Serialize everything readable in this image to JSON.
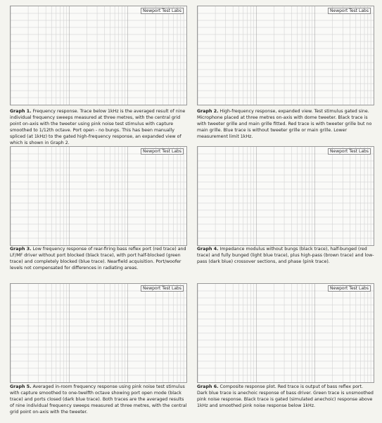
{
  "publisher": "Newport Test Labs",
  "graphs": [
    {
      "label": "Graph 1.",
      "caption": "Frequency response. Trace below 1kHz is the averaged result of nine individual frequency sweeps measured at three metres, with the central grid point on-axis with the tweeter using pink noise test stimulus with capture smoothed to 1/12th octave. Port open - no bungs. This has been manually spliced (at 1kHz) to the gated high-frequency response, an expanded view of which is shown in Graph 2."
    },
    {
      "label": "Graph 2.",
      "caption": "High-frequency response, expanded view. Test stimulus gated sine. Microphone placed at three metres on-axis with dome tweeter. Black trace is with tweeter grille and main grille fitted. Red trace is with tweeter grille but no main grille. Blue trace is without tweeter grille or main grille. Lower measurement limit 1kHz."
    },
    {
      "label": "Graph 3.",
      "caption": "Low frequency response of rear-firing bass reflex port (red trace) and LF/MF driver without port blocked (black trace), with port half-blocked (green trace) and completely blocked (blue trace). Nearfield acquisition. Port/woofer levels not compensated for differences in radiating areas."
    },
    {
      "label": "Graph 4.",
      "caption": "Impedance modulus without bungs (black trace), half-bunged (red trace) and fully bunged (light blue trace), plus high-pass (brown trace) and low-pass (dark blue) crossover sections, and phase (pink trace)."
    },
    {
      "label": "Graph 5.",
      "caption": "Averaged in-room frequency response using pink noise test stimulus with capture smoothed to one-twelfth octave showing port open mode (black trace) and ports closed (dark blue trace). Both traces are the averaged results of nine individual frequency sweeps measured at three metres, with the central grid point on-axis with the tweeter."
    },
    {
      "label": "Graph 6.",
      "caption": "Composite response plot. Red trace is output of bass reflex port. Dark blue trace is anechoic response of bass driver. Green trace is unsmoothed pink noise response. Black trace is gated (simulated anechoic) response above 1kHz and smoothed pink noise response below 1kHz."
    }
  ]
}
